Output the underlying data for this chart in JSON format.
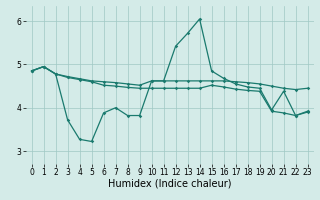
{
  "xlabel": "Humidex (Indice chaleur)",
  "bg_color": "#d4ebe8",
  "grid_color": "#a0c8c4",
  "line_color": "#1a7a6e",
  "xlim": [
    -0.5,
    23.5
  ],
  "ylim": [
    2.7,
    6.35
  ],
  "yticks": [
    3,
    4,
    5,
    6
  ],
  "xticks": [
    0,
    1,
    2,
    3,
    4,
    5,
    6,
    7,
    8,
    9,
    10,
    11,
    12,
    13,
    14,
    15,
    16,
    17,
    18,
    19,
    20,
    21,
    22,
    23
  ],
  "line1_y": [
    4.85,
    4.95,
    4.78,
    4.72,
    4.67,
    4.62,
    4.6,
    4.58,
    4.55,
    4.52,
    4.62,
    4.62,
    4.62,
    4.62,
    4.62,
    4.62,
    4.62,
    4.6,
    4.58,
    4.55,
    4.5,
    4.45,
    4.42,
    4.45
  ],
  "line2_y": [
    4.85,
    4.95,
    4.78,
    3.72,
    3.27,
    3.22,
    3.88,
    4.0,
    3.82,
    3.82,
    4.62,
    4.62,
    5.42,
    5.72,
    6.05,
    4.85,
    4.68,
    4.55,
    4.48,
    4.45,
    3.95,
    4.38,
    3.82,
    3.92
  ],
  "line3_y": [
    4.85,
    4.95,
    4.78,
    4.7,
    4.65,
    4.6,
    4.52,
    4.5,
    4.47,
    4.45,
    4.45,
    4.45,
    4.45,
    4.45,
    4.45,
    4.52,
    4.48,
    4.43,
    4.4,
    4.38,
    3.92,
    3.88,
    3.82,
    3.9
  ],
  "marker": "D",
  "marker_size": 1.8,
  "linewidth": 0.9,
  "tick_fontsize": 5.5,
  "label_fontsize": 7.0
}
